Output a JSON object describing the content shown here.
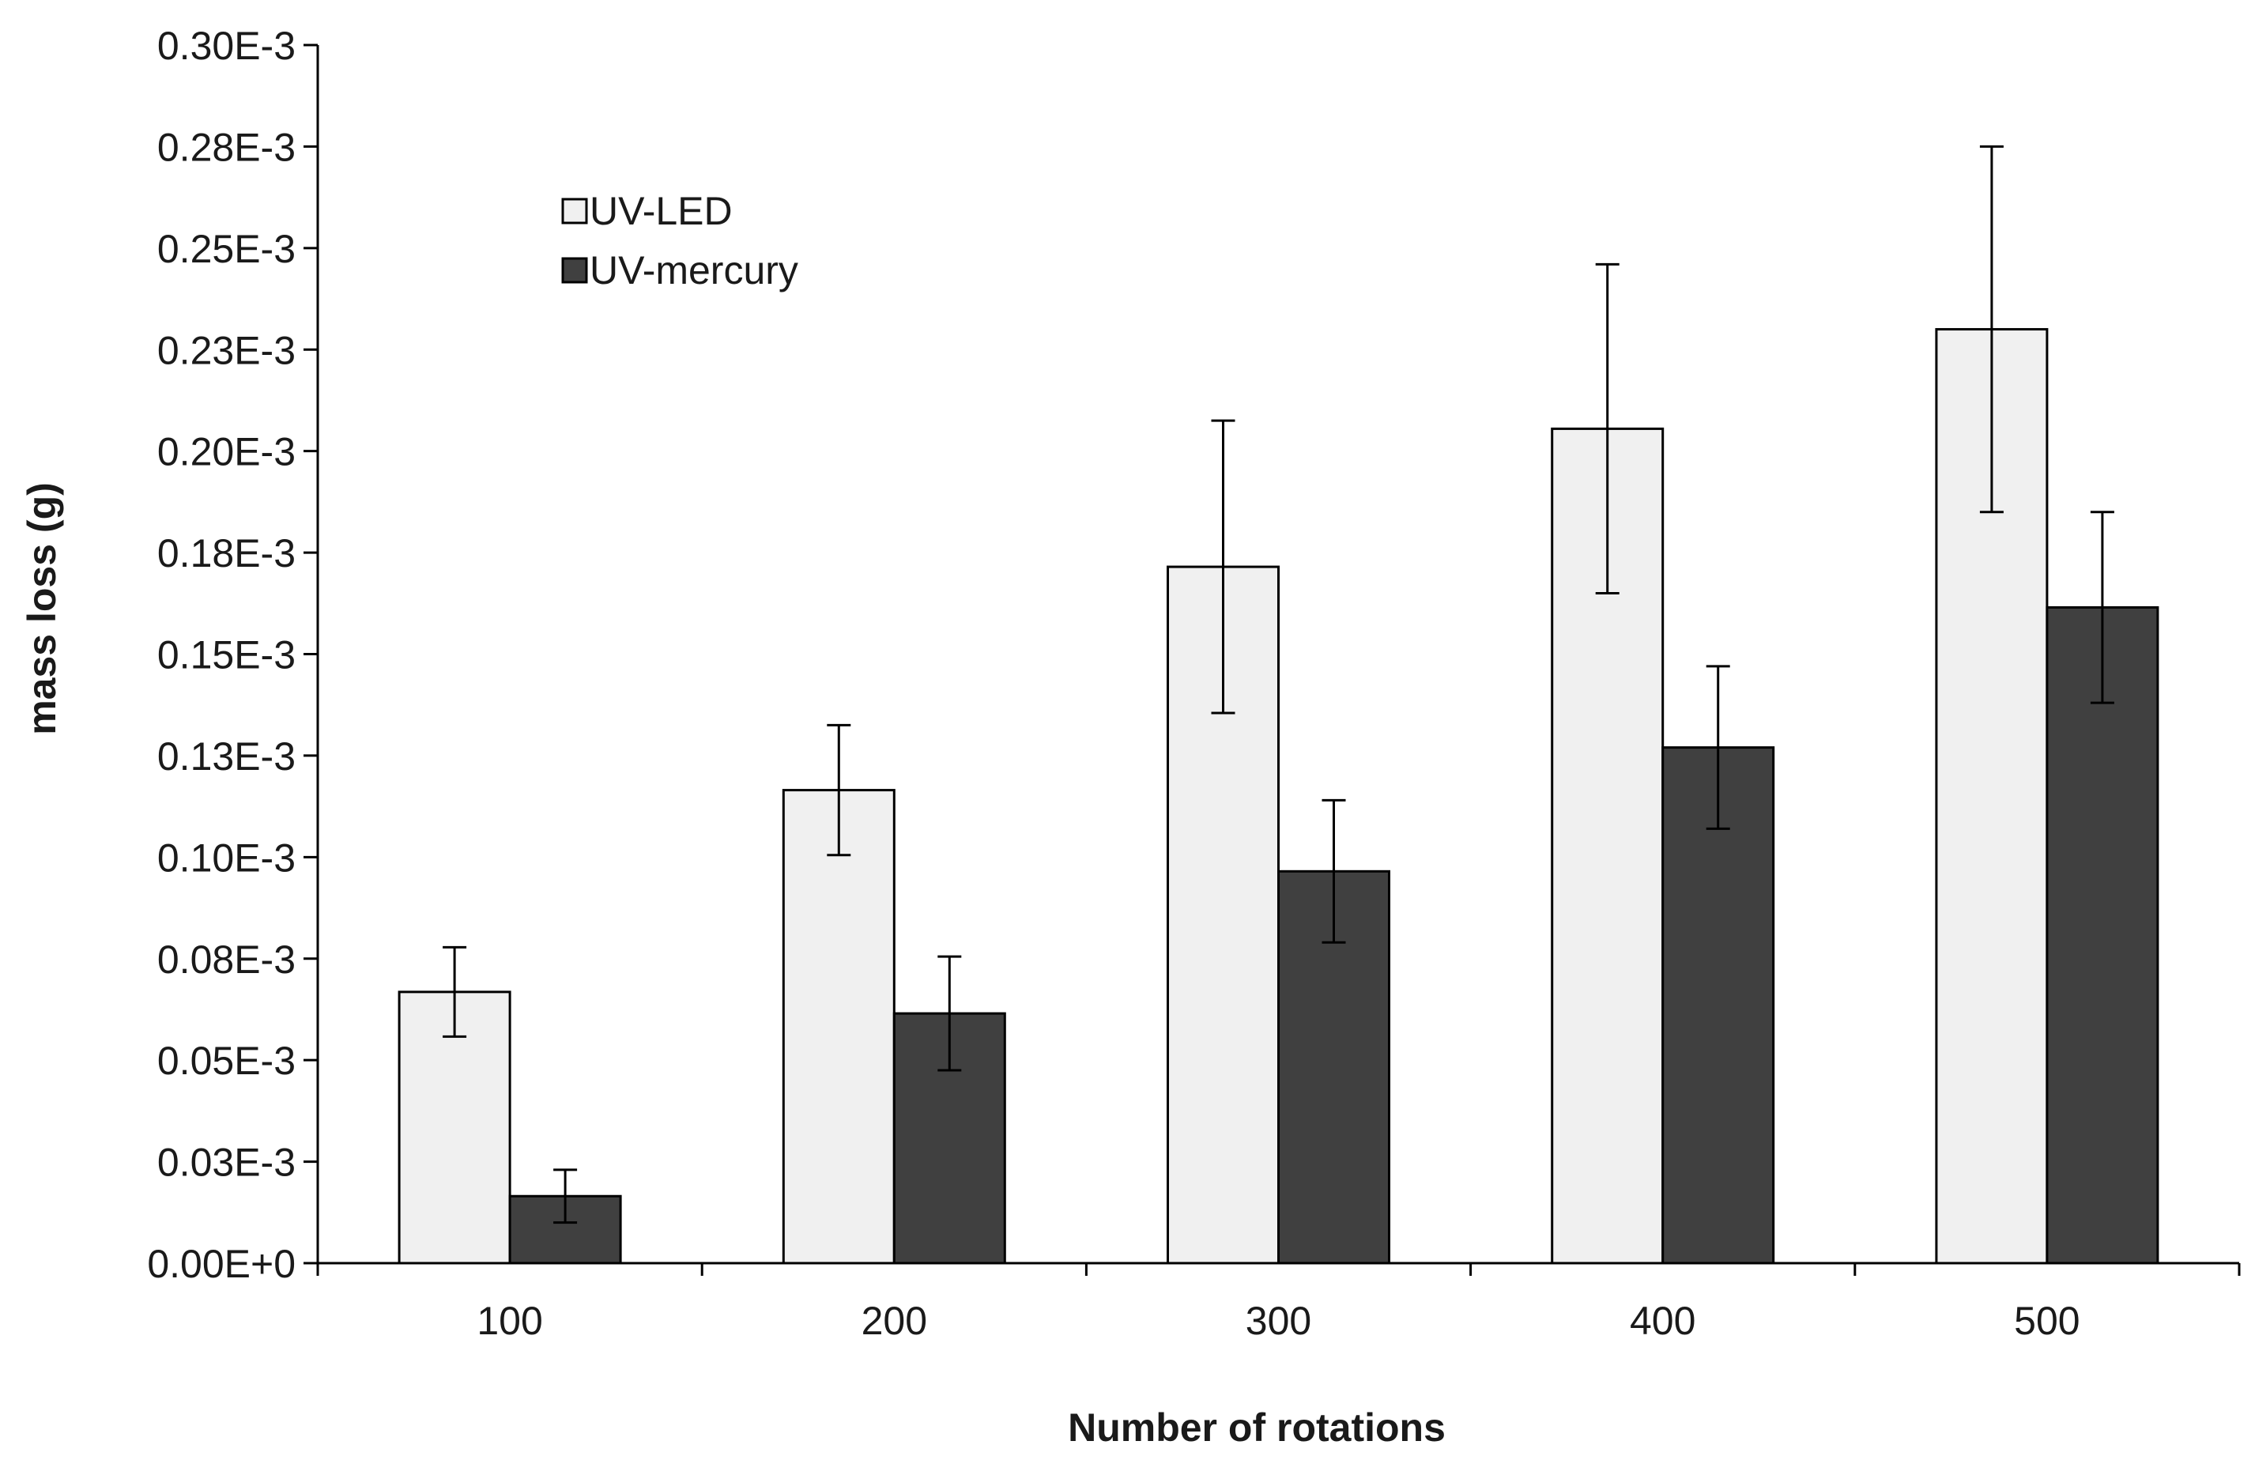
{
  "chart_data": {
    "type": "bar",
    "title": "",
    "xlabel": "Number of rotations",
    "ylabel": "mass loss (g)",
    "categories": [
      "100",
      "200",
      "300",
      "400",
      "500"
    ],
    "ylim": [
      0,
      0.0003
    ],
    "yticks": [
      {
        "value": 0.0,
        "label": "0.00E+0"
      },
      {
        "value": 2.5e-05,
        "label": "0.03E-3"
      },
      {
        "value": 5e-05,
        "label": "0.05E-3"
      },
      {
        "value": 7.5e-05,
        "label": "0.08E-3"
      },
      {
        "value": 0.0001,
        "label": "0.10E-3"
      },
      {
        "value": 0.000125,
        "label": "0.13E-3"
      },
      {
        "value": 0.00015,
        "label": "0.15E-3"
      },
      {
        "value": 0.000175,
        "label": "0.18E-3"
      },
      {
        "value": 0.0002,
        "label": "0.20E-3"
      },
      {
        "value": 0.000225,
        "label": "0.23E-3"
      },
      {
        "value": 0.00025,
        "label": "0.25E-3"
      },
      {
        "value": 0.000275,
        "label": "0.28E-3"
      },
      {
        "value": 0.0003,
        "label": "0.30E-3"
      }
    ],
    "series": [
      {
        "name": "UV-LED",
        "color": "#f0f0f0",
        "values": [
          6.68e-05,
          0.0001165,
          0.0001715,
          0.0002055,
          0.00023
        ],
        "errors": [
          1.1e-05,
          1.6e-05,
          3.6e-05,
          4.05e-05,
          4.5e-05
        ]
      },
      {
        "name": "UV-mercury",
        "color": "#404040",
        "values": [
          1.65e-05,
          6.15e-05,
          9.65e-05,
          0.000127,
          0.0001615
        ],
        "errors": [
          6.5e-06,
          1.4e-05,
          1.75e-05,
          2e-05,
          2.35e-05
        ]
      }
    ],
    "legend_position": "top-left",
    "grid": false
  }
}
